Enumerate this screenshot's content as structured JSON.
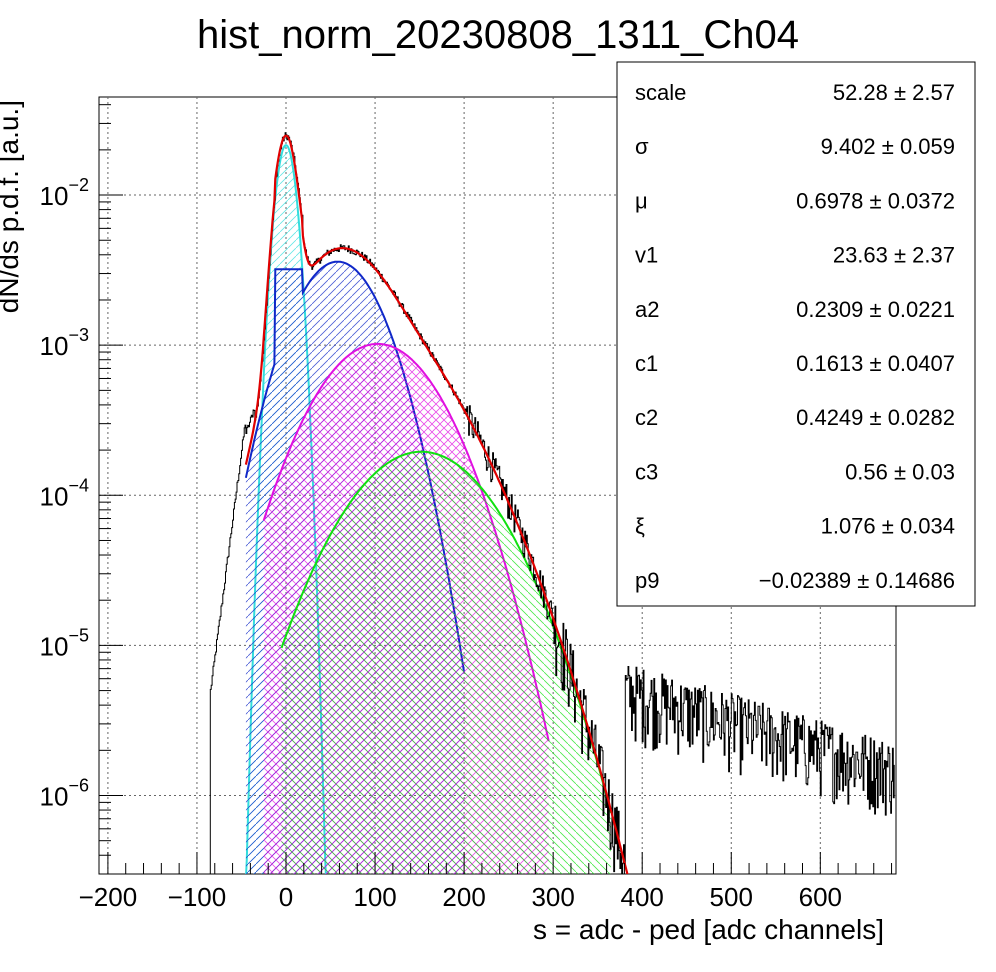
{
  "chart_data": {
    "type": "line",
    "title": "hist_norm_20230808_1311_Ch04",
    "xlabel": "s = adc - ped [adc channels]",
    "ylabel": "dN/ds p.d.f. [a.u.]",
    "xlim": [
      -210,
      685
    ],
    "ylim": [
      3e-07,
      0.045
    ],
    "log_y": true,
    "grid": true,
    "x_ticks": [
      -200,
      -100,
      0,
      100,
      200,
      300,
      400,
      500,
      600
    ],
    "x_tick_labels": [
      "−200",
      "−100",
      "0",
      "100",
      "200",
      "300",
      "400",
      "500",
      "600"
    ],
    "y_ticks": [
      {
        "value": 1e-06,
        "base": "10",
        "exp": "−6"
      },
      {
        "value": 1e-05,
        "base": "10",
        "exp": "−5"
      },
      {
        "value": 0.0001,
        "base": "10",
        "exp": "−4"
      },
      {
        "value": 0.001,
        "base": "10",
        "exp": "−3"
      },
      {
        "value": 0.01,
        "base": "10",
        "exp": "−2"
      }
    ],
    "colors": {
      "histogram": "#000000",
      "total_fit": "#e00000",
      "pedestal": "#33dddd",
      "one_pe": "#1028c8",
      "two_pe": "#e010e0",
      "three_pe": "#10e010"
    },
    "components": [
      {
        "key": "pedestal",
        "peak_x": 0,
        "peak_y": 0.0215,
        "sigma": 9.4,
        "xmin": -50,
        "xmax": 50
      },
      {
        "key": "one_pe",
        "peak_x": 58,
        "peak_y": 0.0036,
        "sigma": 40,
        "xmin": -45,
        "xmax": 200,
        "plateau_from": -12,
        "plateau_to": 18,
        "plateau_y": 0.0032
      },
      {
        "key": "two_pe",
        "peak_x": 103,
        "peak_y": 0.00102,
        "sigma": 55,
        "xmin": -25,
        "xmax": 295
      },
      {
        "key": "three_pe",
        "peak_x": 152,
        "peak_y": 0.000195,
        "sigma": 64,
        "xmin": -5,
        "xmax": 365
      }
    ],
    "stats": [
      {
        "name": "scale",
        "value": "52.28 ± 2.57"
      },
      {
        "name": "σ",
        "value": "9.402 ± 0.059"
      },
      {
        "name": "μ",
        "value": "0.6978 ± 0.0372"
      },
      {
        "name": "v1",
        "value": "23.63 ± 2.37"
      },
      {
        "name": "a2",
        "value": "0.2309 ± 0.0221"
      },
      {
        "name": "c1",
        "value": "0.1613 ± 0.0407"
      },
      {
        "name": "c2",
        "value": "0.4249 ± 0.0282"
      },
      {
        "name": "c3",
        "value": "0.56 ± 0.03"
      },
      {
        "name": "ξ",
        "value": "1.076 ± 0.034"
      },
      {
        "name": "p9",
        "value": "−0.02389 ± 0.14686"
      }
    ]
  }
}
